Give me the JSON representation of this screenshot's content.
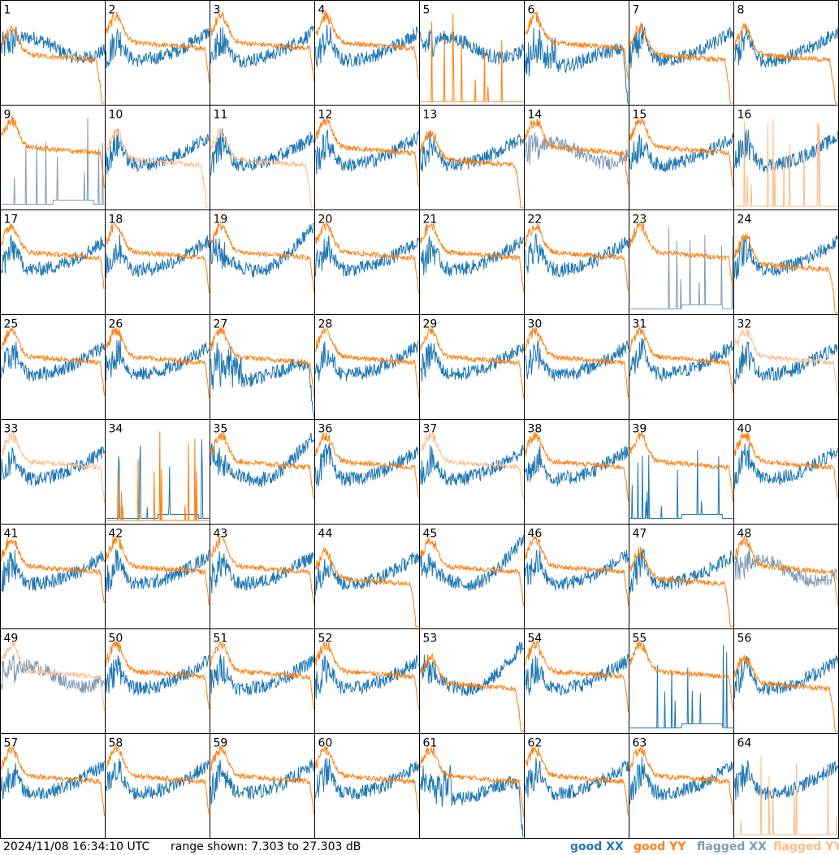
{
  "footer": {
    "timestamp": "2024/11/08 16:34:10 UTC",
    "range_text": "range shown: 7.303 to 27.303 dB"
  },
  "legend": [
    {
      "label": "good XX",
      "color": "#1f77b4"
    },
    {
      "label": "good YY",
      "color": "#ff7f0e"
    },
    {
      "label": "flagged XX",
      "color": "#7f9bb5"
    },
    {
      "label": "flagged YY",
      "color": "#ffbb88"
    }
  ],
  "chart_data": {
    "type": "line",
    "grid": {
      "rows": 8,
      "cols": 8
    },
    "y_range_db": [
      7.303,
      27.303
    ],
    "panel_ids": [
      "1",
      "2",
      "3",
      "4",
      "5",
      "6",
      "7",
      "8",
      "9",
      "10",
      "11",
      "12",
      "13",
      "14",
      "15",
      "16",
      "17",
      "18",
      "19",
      "20",
      "21",
      "22",
      "23",
      "24",
      "25",
      "26",
      "27",
      "28",
      "29",
      "30",
      "31",
      "32",
      "33",
      "34",
      "35",
      "36",
      "37",
      "38",
      "39",
      "40",
      "41",
      "42",
      "43",
      "44",
      "45",
      "46",
      "47",
      "48",
      "49",
      "50",
      "51",
      "52",
      "53",
      "54",
      "55",
      "56",
      "57",
      "58",
      "59",
      "60",
      "61",
      "62",
      "63",
      "64"
    ],
    "series_style": {
      "good_xx": "#1f77b4",
      "good_yy": "#ff7f0e",
      "flagged_xx": "#7f9bb5",
      "flagged_yy": "#ffbb88"
    },
    "xx_status": [
      "good",
      "good",
      "good",
      "good",
      "good",
      "good",
      "good",
      "good",
      "flagged",
      "good",
      "good",
      "good",
      "good",
      "flagged",
      "good",
      "good",
      "good",
      "good",
      "good",
      "good",
      "good",
      "good",
      "flagged",
      "good",
      "good",
      "good",
      "good",
      "good",
      "good",
      "good",
      "good",
      "good",
      "good",
      "good",
      "good",
      "good",
      "good",
      "good",
      "good",
      "good",
      "good",
      "good",
      "good",
      "good",
      "good",
      "good",
      "good",
      "flagged",
      "flagged",
      "good",
      "good",
      "good",
      "good",
      "good",
      "good",
      "good",
      "good",
      "good",
      "good",
      "good",
      "good",
      "good",
      "good",
      "good"
    ],
    "yy_status": [
      "good",
      "good",
      "good",
      "good",
      "good",
      "good",
      "good",
      "good",
      "good",
      "flagged",
      "flagged",
      "good",
      "good",
      "good",
      "good",
      "flagged",
      "good",
      "good",
      "good",
      "good",
      "good",
      "good",
      "good",
      "good",
      "good",
      "good",
      "good",
      "good",
      "good",
      "good",
      "good",
      "flagged",
      "flagged",
      "good",
      "good",
      "good",
      "flagged",
      "good",
      "good",
      "good",
      "good",
      "good",
      "good",
      "good",
      "good",
      "good",
      "good",
      "good",
      "flagged",
      "good",
      "good",
      "good",
      "good",
      "good",
      "good",
      "good",
      "good",
      "good",
      "good",
      "good",
      "good",
      "good",
      "good",
      "flagged"
    ],
    "xx_profile": {
      "low_spiky": [
        9,
        23,
        34,
        39,
        55
      ],
      "dropout_wave": [
        6,
        27,
        61
      ],
      "bowl": [
        19,
        35,
        45,
        53
      ],
      "flat_mid": [
        1,
        5,
        14,
        48,
        49
      ]
    },
    "yy_profile": {
      "spikes_only": [
        5,
        16,
        34,
        64
      ],
      "falling_tail": [
        1,
        7,
        8,
        10,
        11,
        13,
        24,
        44,
        47,
        53,
        56
      ],
      "noisy_flat": [
        32,
        49,
        62
      ]
    }
  }
}
